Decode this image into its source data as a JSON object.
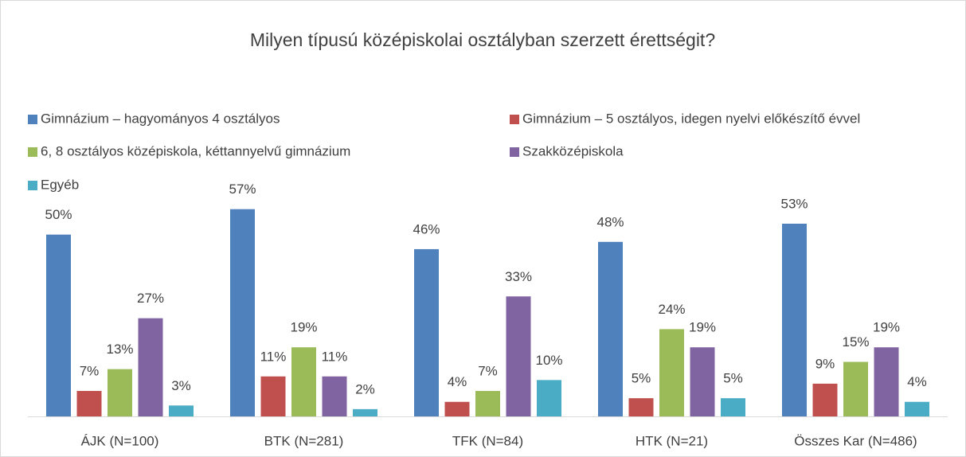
{
  "chart_data": {
    "type": "bar",
    "title": "Milyen típusú középiskolai osztályban szerzett érettségit?",
    "categories": [
      "ÁJK (N=100)",
      "BTK (N=281)",
      "TFK (N=84)",
      "HTK (N=21)",
      "Összes Kar (N=486)"
    ],
    "series": [
      {
        "name": "Gimnázium – hagyományos 4 osztályos",
        "color": "#4f81bd",
        "values": [
          50,
          57,
          46,
          48,
          53
        ],
        "value_labels": [
          "50%",
          "57%",
          "46%",
          "48%",
          "53%"
        ]
      },
      {
        "name": "Gimnázium – 5 osztályos, idegen nyelvi előkészítő évvel",
        "color": "#c0504d",
        "values": [
          7,
          11,
          4,
          5,
          9
        ],
        "value_labels": [
          "7%",
          "11%",
          "4%",
          "5%",
          "9%"
        ]
      },
      {
        "name": "6, 8 osztályos középiskola, kéttannyelvű gimnázium",
        "color": "#9bbb59",
        "values": [
          13,
          19,
          7,
          24,
          15
        ],
        "value_labels": [
          "13%",
          "19%",
          "7%",
          "24%",
          "15%"
        ]
      },
      {
        "name": "Szakközépiskola",
        "color": "#8064a2",
        "values": [
          27,
          11,
          33,
          19,
          19
        ],
        "value_labels": [
          "27%",
          "11%",
          "33%",
          "19%",
          "19%"
        ]
      },
      {
        "name": "Egyéb",
        "color": "#4bacc6",
        "values": [
          3,
          2,
          10,
          5,
          4
        ],
        "value_labels": [
          "3%",
          "2%",
          "10%",
          "5%",
          "4%"
        ]
      }
    ],
    "ylim": [
      0,
      60
    ],
    "legend": "top"
  }
}
